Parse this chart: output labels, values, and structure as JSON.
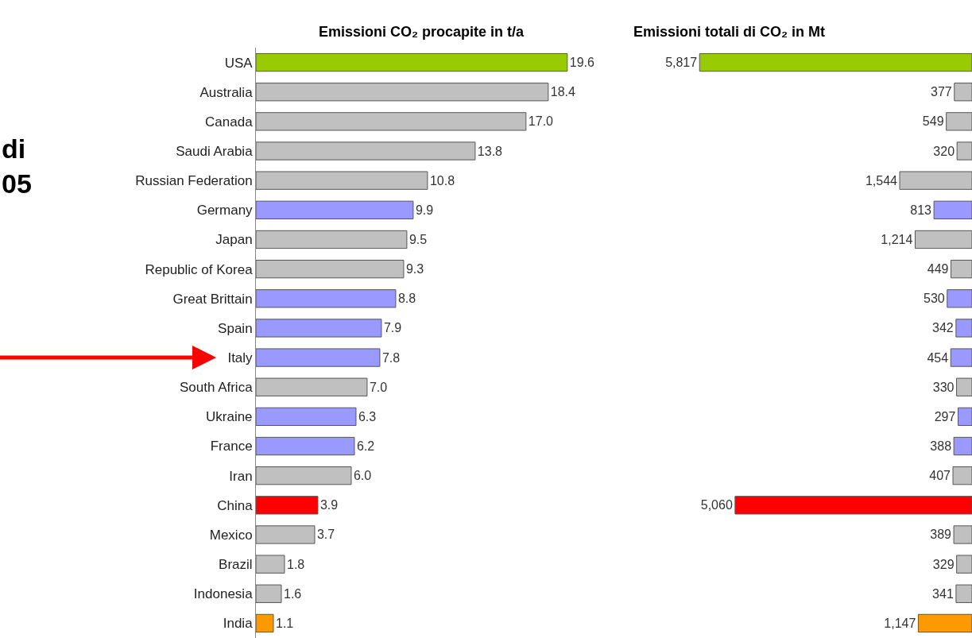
{
  "chart_data": [
    {
      "type": "bar",
      "orientation": "horizontal",
      "title": "Emissioni CO₂ procapite in t/a",
      "categories": [
        "USA",
        "Australia",
        "Canada",
        "Saudi Arabia",
        "Russian Federation",
        "Germany",
        "Japan",
        "Republic of Korea",
        "Great Brittain",
        "Spain",
        "Italy",
        "South Africa",
        "Ukraine",
        "France",
        "Iran",
        "China",
        "Mexico",
        "Brazil",
        "Indonesia",
        "India"
      ],
      "values": [
        19.6,
        18.4,
        17.0,
        13.8,
        10.8,
        9.9,
        9.5,
        9.3,
        8.8,
        7.9,
        7.8,
        7.0,
        6.3,
        6.2,
        6.0,
        3.9,
        3.7,
        1.8,
        1.6,
        1.1
      ],
      "value_labels": [
        "19.6",
        "18.4",
        "17.0",
        "13.8",
        "10.8",
        "9.9",
        "9.5",
        "9.3",
        "8.8",
        "7.9",
        "7.8",
        "7.0",
        "6.3",
        "6.2",
        "6.0",
        "3.9",
        "3.7",
        "1.8",
        "1.6",
        "1.1"
      ],
      "colors": [
        "#99cc00",
        "#c0c0c0",
        "#c0c0c0",
        "#c0c0c0",
        "#c0c0c0",
        "#9999ff",
        "#c0c0c0",
        "#c0c0c0",
        "#9999ff",
        "#9999ff",
        "#9999ff",
        "#c0c0c0",
        "#9999ff",
        "#9999ff",
        "#c0c0c0",
        "#ff0000",
        "#c0c0c0",
        "#c0c0c0",
        "#c0c0c0",
        "#ff9900"
      ],
      "tick_labels": "y",
      "annotations": [
        "di\n05"
      ]
    },
    {
      "type": "bar",
      "orientation": "horizontal",
      "title": "Emissioni totali di CO₂ in Mt",
      "values": [
        5817,
        377,
        549,
        320,
        1544,
        813,
        1214,
        449,
        530,
        342,
        454,
        330,
        297,
        388,
        407,
        5060,
        389,
        329,
        341,
        1147
      ],
      "value_labels": [
        "5,817",
        "377",
        "549",
        "320",
        "1,544",
        "813",
        "1,214",
        "449",
        "530",
        "342",
        "454",
        "330",
        "297",
        "388",
        "407",
        "5,060",
        "389",
        "329",
        "341",
        "1,147"
      ],
      "colors": [
        "#99cc00",
        "#c0c0c0",
        "#c0c0c0",
        "#c0c0c0",
        "#c0c0c0",
        "#9999ff",
        "#c0c0c0",
        "#c0c0c0",
        "#9999ff",
        "#9999ff",
        "#9999ff",
        "#c0c0c0",
        "#9999ff",
        "#9999ff",
        "#c0c0c0",
        "#ff0000",
        "#c0c0c0",
        "#c0c0c0",
        "#c0c0c0",
        "#ff9900"
      ],
      "tick_labels": false
    }
  ]
}
